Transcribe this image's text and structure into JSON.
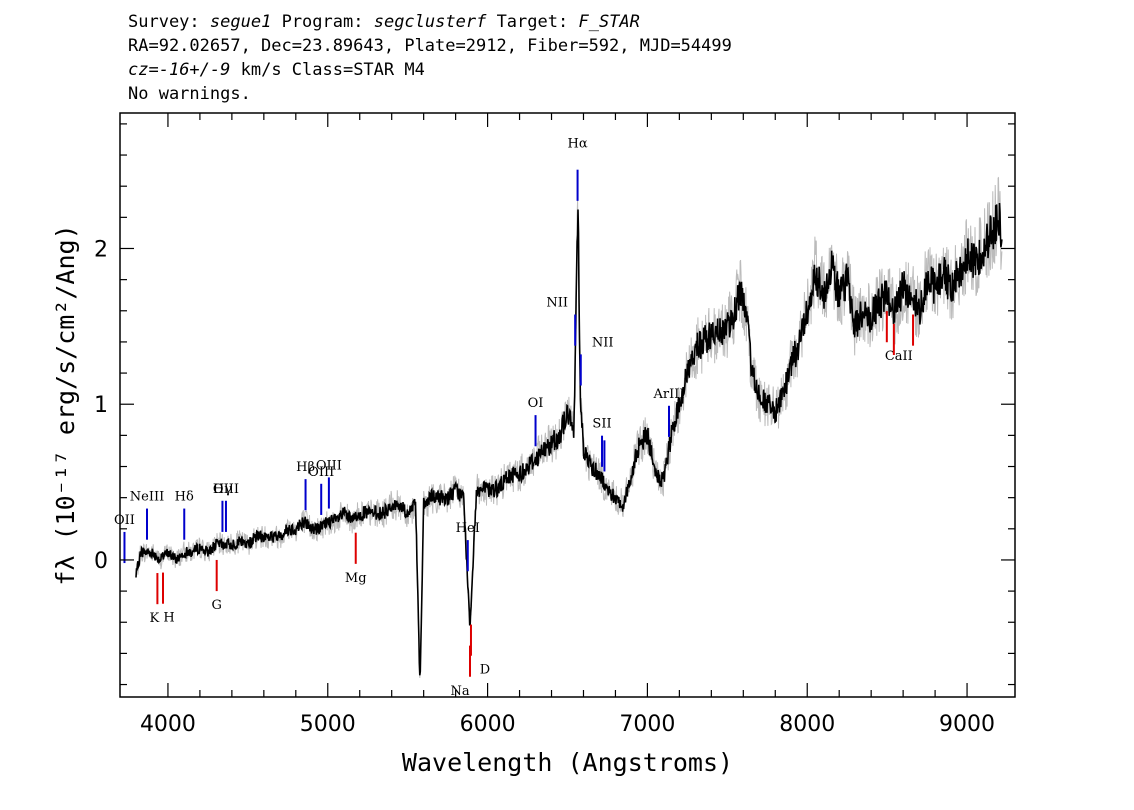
{
  "header": {
    "survey_label": "Survey:",
    "survey": "segue1",
    "program_label": "Program:",
    "program": "segclusterf",
    "target_label": "Target:",
    "target": "F_STAR",
    "line2": "RA=92.02657, Dec=23.89643, Plate=2912, Fiber=592, MJD=54499",
    "cz_prefix": "cz=",
    "cz_value": "-16+/-9",
    "cz_suffix": " km/s Class=STAR M4",
    "line4": "No warnings."
  },
  "chart_data": {
    "type": "line",
    "xlabel": "Wavelength (Angstroms)",
    "ylabel": "fλ (10⁻¹⁷ erg/s/cm²/Ang)",
    "xlim": [
      3700,
      9300
    ],
    "ylim": [
      -0.88,
      2.87
    ],
    "xticks": [
      4000,
      5000,
      6000,
      7000,
      8000,
      9000
    ],
    "yticks": [
      0,
      1,
      2
    ],
    "colors": {
      "flux": "#000000",
      "error": "#bbbbbb",
      "emission": "#0000cc",
      "absorption": "#dd0000"
    },
    "series": [
      {
        "x": [
          3800,
          3830,
          3900,
          3950,
          4000,
          4050,
          4100,
          4150,
          4200,
          4250,
          4300,
          4350,
          4400,
          4450,
          4500,
          4550,
          4600,
          4650,
          4700,
          4750,
          4800,
          4850,
          4900,
          4950,
          5000,
          5050,
          5100,
          5150,
          5200,
          5250,
          5300,
          5350,
          5400,
          5450,
          5500,
          5550,
          5577,
          5600,
          5650,
          5700,
          5750,
          5800,
          5850,
          5890,
          5930,
          6000,
          6050,
          6100,
          6150,
          6200,
          6250,
          6300,
          6350,
          6400,
          6450,
          6500,
          6540,
          6565,
          6580,
          6600,
          6650,
          6700,
          6750,
          6800,
          6850,
          6900,
          6950,
          7000,
          7050,
          7100,
          7150,
          7200,
          7250,
          7300,
          7350,
          7400,
          7450,
          7500,
          7550,
          7580,
          7620,
          7650,
          7700,
          7750,
          7800,
          7850,
          7900,
          7950,
          8000,
          8050,
          8100,
          8150,
          8200,
          8250,
          8300,
          8350,
          8400,
          8450,
          8500,
          8550,
          8600,
          8650,
          8700,
          8750,
          8800,
          8850,
          8900,
          8950,
          9000,
          9050,
          9100,
          9150,
          9200,
          9220
        ],
        "y": [
          -0.1,
          0.05,
          0.05,
          0.0,
          0.05,
          0.0,
          0.05,
          0.05,
          0.08,
          0.05,
          0.1,
          0.1,
          0.1,
          0.12,
          0.1,
          0.15,
          0.15,
          0.15,
          0.15,
          0.2,
          0.2,
          0.25,
          0.2,
          0.2,
          0.25,
          0.25,
          0.3,
          0.25,
          0.3,
          0.3,
          0.3,
          0.3,
          0.35,
          0.35,
          0.3,
          0.35,
          -0.8,
          0.35,
          0.4,
          0.4,
          0.4,
          0.45,
          0.4,
          -0.45,
          0.45,
          0.45,
          0.45,
          0.5,
          0.55,
          0.55,
          0.6,
          0.65,
          0.7,
          0.75,
          0.8,
          0.95,
          0.8,
          2.35,
          1.1,
          0.7,
          0.6,
          0.55,
          0.45,
          0.4,
          0.35,
          0.55,
          0.75,
          0.8,
          0.55,
          0.5,
          0.8,
          1.0,
          1.2,
          1.35,
          1.4,
          1.45,
          1.45,
          1.5,
          1.6,
          1.75,
          1.55,
          1.25,
          1.05,
          1.0,
          0.95,
          1.05,
          1.25,
          1.4,
          1.6,
          1.85,
          1.7,
          1.9,
          1.7,
          1.8,
          1.5,
          1.6,
          1.55,
          1.65,
          1.7,
          1.6,
          1.75,
          1.7,
          1.6,
          1.8,
          1.75,
          1.85,
          1.75,
          1.85,
          1.95,
          1.9,
          2.0,
          2.1,
          2.2,
          2.0
        ]
      }
    ],
    "lines": [
      {
        "label": "OII",
        "x": 3728,
        "type": "emission"
      },
      {
        "label": "NeIII",
        "x": 3869,
        "type": "emission"
      },
      {
        "label": "Hδ",
        "x": 4102,
        "type": "emission"
      },
      {
        "label": "Hγ",
        "x": 4341,
        "type": "emission"
      },
      {
        "label": "OIII",
        "x": 4363,
        "type": "emission"
      },
      {
        "label": "Hβ",
        "x": 4861,
        "type": "emission"
      },
      {
        "label": "OIII",
        "x": 4959,
        "type": "emission"
      },
      {
        "label": "OIII",
        "x": 5007,
        "type": "emission"
      },
      {
        "label": "HeI",
        "x": 5876,
        "type": "emission"
      },
      {
        "label": "OI",
        "x": 6300,
        "type": "emission"
      },
      {
        "label": "NII",
        "x": 6548,
        "type": "emission"
      },
      {
        "label": "Hα",
        "x": 6563,
        "type": "emission"
      },
      {
        "label": "NII",
        "x": 6583,
        "type": "emission"
      },
      {
        "label": "SII",
        "x": 6716,
        "type": "emission"
      },
      {
        "label": "SII",
        "x": 6731,
        "type": "emission"
      },
      {
        "label": "ArIII",
        "x": 7135,
        "type": "emission"
      },
      {
        "label": "K",
        "x": 3934,
        "type": "absorption"
      },
      {
        "label": "H",
        "x": 3969,
        "type": "absorption"
      },
      {
        "label": "G",
        "x": 4305,
        "type": "absorption"
      },
      {
        "label": "Mg",
        "x": 5175,
        "type": "absorption"
      },
      {
        "label": "Na",
        "x": 5890,
        "type": "absorption"
      },
      {
        "label": "D",
        "x": 5896,
        "type": "absorption"
      },
      {
        "label": "CaII",
        "x": 8498,
        "type": "absorption"
      },
      {
        "label": "CaII",
        "x": 8542,
        "type": "absorption"
      },
      {
        "label": "CaII",
        "x": 8662,
        "type": "absorption"
      }
    ]
  }
}
